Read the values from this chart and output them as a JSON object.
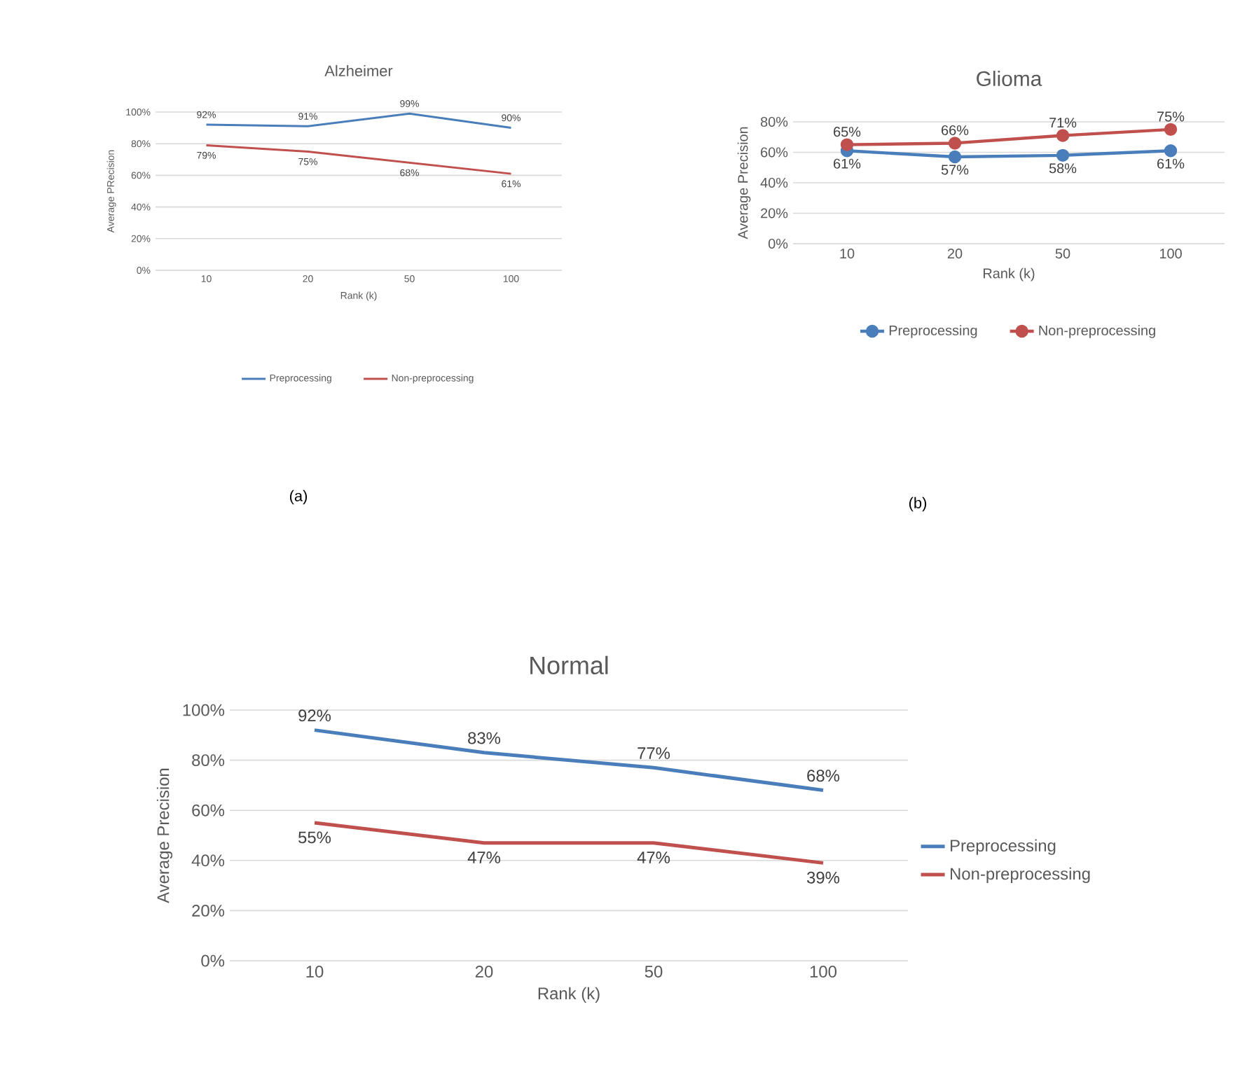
{
  "chart_data": [
    {
      "type": "line",
      "title": "Alzheimer",
      "xlabel": "Rank (k)",
      "ylabel": "Average PRecision",
      "categories": [
        "10",
        "20",
        "50",
        "100"
      ],
      "ylim": [
        0,
        100
      ],
      "yticks": [
        {
          "value": 0,
          "label": "0%"
        },
        {
          "value": 20,
          "label": "20%"
        },
        {
          "value": 40,
          "label": "40%"
        },
        {
          "value": 60,
          "label": "60%"
        },
        {
          "value": 80,
          "label": "80%"
        },
        {
          "value": 100,
          "label": "100%"
        }
      ],
      "grid": "y",
      "legend": "bottom",
      "annotations": [
        "(a)"
      ],
      "series": [
        {
          "name": "Preprocessing",
          "color": "#4a7ebb",
          "values": [
            92,
            91,
            99,
            90
          ],
          "value_labels": [
            "92%",
            "91%",
            "99%",
            "90%"
          ]
        },
        {
          "name": "Non-preprocessing",
          "color": "#c0504d",
          "values": [
            79,
            75,
            68,
            61
          ],
          "value_labels": [
            "79%",
            "75%",
            "68%",
            "61%"
          ]
        }
      ]
    },
    {
      "type": "line",
      "title": "Glioma",
      "xlabel": "Rank (k)",
      "ylabel": "Average Precision",
      "categories": [
        "10",
        "20",
        "50",
        "100"
      ],
      "ylim": [
        0,
        80
      ],
      "yticks": [
        {
          "value": 0,
          "label": "0%"
        },
        {
          "value": 20,
          "label": "20%"
        },
        {
          "value": 40,
          "label": "40%"
        },
        {
          "value": 60,
          "label": "60%"
        },
        {
          "value": 80,
          "label": "80%"
        }
      ],
      "grid": "y",
      "legend": "bottom",
      "marker": "circle",
      "annotations": [
        "(b)"
      ],
      "series": [
        {
          "name": "Preprocessing",
          "color": "#4a7ebb",
          "values": [
            61,
            57,
            58,
            61
          ],
          "value_labels": [
            "61%",
            "57%",
            "58%",
            "61%"
          ]
        },
        {
          "name": "Non-preprocessing",
          "color": "#c0504d",
          "values": [
            65,
            66,
            71,
            75
          ],
          "value_labels": [
            "65%",
            "66%",
            "71%",
            "75%"
          ]
        }
      ]
    },
    {
      "type": "line",
      "title": "Normal",
      "xlabel": "Rank (k)",
      "ylabel": "Average Precision",
      "categories": [
        "10",
        "20",
        "50",
        "100"
      ],
      "ylim": [
        0,
        100
      ],
      "yticks": [
        {
          "value": 0,
          "label": "0%"
        },
        {
          "value": 20,
          "label": "20%"
        },
        {
          "value": 40,
          "label": "40%"
        },
        {
          "value": 60,
          "label": "60%"
        },
        {
          "value": 80,
          "label": "80%"
        },
        {
          "value": 100,
          "label": "100%"
        }
      ],
      "grid": "y",
      "legend": "right",
      "series": [
        {
          "name": "Preprocessing",
          "color": "#4a7ebb",
          "values": [
            92,
            83,
            77,
            68
          ],
          "value_labels": [
            "92%",
            "83%",
            "77%",
            "68%"
          ]
        },
        {
          "name": "Non-preprocessing",
          "color": "#c0504d",
          "values": [
            55,
            47,
            47,
            39
          ],
          "value_labels": [
            "55%",
            "47%",
            "47%",
            "39%"
          ]
        }
      ]
    }
  ]
}
